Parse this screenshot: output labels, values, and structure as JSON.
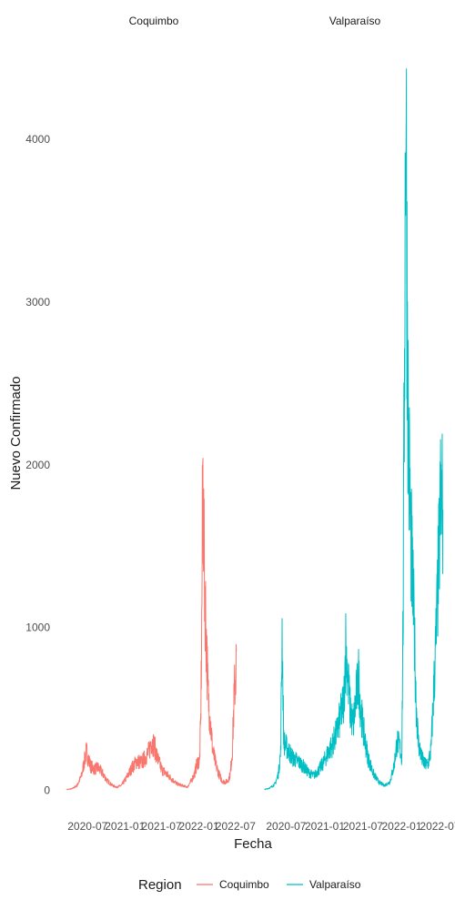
{
  "chart_data": {
    "type": "line",
    "xlabel": "Fecha",
    "ylabel": "Nuevo Confirmado",
    "ylim": [
      -120,
      4520
    ],
    "y_ticks": [
      0,
      1000,
      2000,
      3000,
      4000
    ],
    "y_tick_labels": [
      "0",
      "1000",
      "2000",
      "3000",
      "4000"
    ],
    "x_ticks": [
      "2020-07-01",
      "2021-01-01",
      "2021-07-01",
      "2022-01-01",
      "2022-07-01"
    ],
    "x_tick_labels": [
      "2020-07",
      "2021-01",
      "2021-07",
      "2022-01",
      "2022-07"
    ],
    "xlim": [
      "2020-02-25",
      "2022-08-20"
    ],
    "grid": false,
    "legend": {
      "title": "Region",
      "position": "bottom"
    },
    "facets": [
      {
        "label": "Coquimbo",
        "color": "#F8766D",
        "x": [
          "2020-03-20",
          "2020-04-15",
          "2020-05-10",
          "2020-06-01",
          "2020-06-15",
          "2020-06-25",
          "2020-07-15",
          "2020-08-05",
          "2020-08-20",
          "2020-09-10",
          "2020-10-05",
          "2020-11-01",
          "2020-11-20",
          "2020-12-15",
          "2021-01-10",
          "2021-02-05",
          "2021-03-01",
          "2021-03-25",
          "2021-04-15",
          "2021-05-01",
          "2021-05-10",
          "2021-05-25",
          "2021-06-10",
          "2021-07-01",
          "2021-07-25",
          "2021-08-20",
          "2021-09-15",
          "2021-10-10",
          "2021-11-05",
          "2021-11-25",
          "2021-12-10",
          "2021-12-20",
          "2021-12-28",
          "2022-01-04",
          "2022-01-10",
          "2022-01-15",
          "2022-01-20",
          "2022-01-27",
          "2022-02-05",
          "2022-02-15",
          "2022-02-25",
          "2022-03-10",
          "2022-03-25",
          "2022-04-10",
          "2022-04-25",
          "2022-05-10",
          "2022-05-25",
          "2022-06-05",
          "2022-06-15",
          "2022-06-25",
          "2022-07-05"
        ],
        "y": [
          5,
          10,
          30,
          90,
          180,
          240,
          150,
          130,
          140,
          110,
          60,
          30,
          20,
          30,
          80,
          140,
          180,
          170,
          210,
          240,
          300,
          280,
          200,
          130,
          100,
          70,
          40,
          30,
          20,
          60,
          100,
          150,
          180,
          170,
          420,
          1000,
          1950,
          1400,
          1000,
          600,
          450,
          250,
          160,
          100,
          60,
          50,
          60,
          100,
          250,
          600,
          790
        ]
      },
      {
        "label": "Valparaíso",
        "color": "#00BFC4",
        "x": [
          "2020-03-20",
          "2020-04-15",
          "2020-05-10",
          "2020-05-25",
          "2020-06-05",
          "2020-06-12",
          "2020-06-20",
          "2020-07-05",
          "2020-08-01",
          "2020-08-25",
          "2020-09-20",
          "2020-10-15",
          "2020-11-10",
          "2020-12-05",
          "2020-12-25",
          "2021-01-15",
          "2021-02-05",
          "2021-02-25",
          "2021-03-15",
          "2021-04-01",
          "2021-04-10",
          "2021-04-20",
          "2021-05-01",
          "2021-05-15",
          "2021-06-01",
          "2021-06-10",
          "2021-06-20",
          "2021-07-05",
          "2021-07-25",
          "2021-08-20",
          "2021-09-15",
          "2021-10-10",
          "2021-11-05",
          "2021-11-25",
          "2021-12-10",
          "2021-12-20",
          "2022-01-01",
          "2022-01-08",
          "2022-01-15",
          "2022-01-20",
          "2022-01-25",
          "2022-02-01",
          "2022-02-10",
          "2022-02-20",
          "2022-03-01",
          "2022-03-10",
          "2022-03-20",
          "2022-04-05",
          "2022-04-20",
          "2022-05-05",
          "2022-05-20",
          "2022-06-01",
          "2022-06-15",
          "2022-06-25",
          "2022-07-05",
          "2022-07-15"
        ],
        "y": [
          5,
          15,
          40,
          100,
          230,
          980,
          300,
          260,
          200,
          180,
          150,
          110,
          90,
          130,
          170,
          230,
          280,
          350,
          450,
          550,
          900,
          700,
          500,
          400,
          600,
          700,
          500,
          350,
          200,
          100,
          50,
          30,
          50,
          150,
          300,
          280,
          200,
          1200,
          3000,
          4500,
          3300,
          2200,
          1700,
          1300,
          1000,
          550,
          300,
          200,
          160,
          160,
          250,
          600,
          1000,
          1400,
          1800,
          1750
        ]
      }
    ]
  }
}
